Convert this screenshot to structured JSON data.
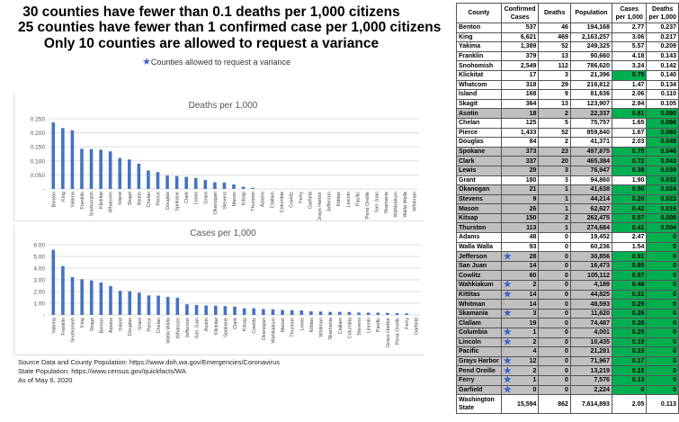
{
  "headlines": [
    "30 counties have fewer than 0.1 deaths per 1,000 citizens",
    "25 counties have fewer than 1 confirmed case per 1,000 citizens",
    "Only 10 counties are allowed to request a variance"
  ],
  "legend": {
    "icon": "star-icon",
    "label": "Counties allowed to request a variance"
  },
  "footer": [
    "Source Data and County Population: https://www.doh.wa.gov/Emergencies/Coronavirus",
    "State Population: https://www.census.gov/quickfacts/WA",
    "As of May 6, 2020"
  ],
  "colors": {
    "bar": "#4472c4",
    "gray": "#c0c0c0",
    "green": "#00b050",
    "star": "#3a62c4"
  },
  "table": {
    "headers": [
      "County",
      "Confirmed Cases",
      "Deaths",
      "Population",
      "Cases per 1,000",
      "Deaths per 1,000"
    ],
    "rows": [
      {
        "c": "Benton",
        "cases": "537",
        "deaths": "46",
        "pop": "194,168",
        "cp": "2.77",
        "dp": "0.237",
        "star": false,
        "gray": false,
        "gc": false,
        "gd": false
      },
      {
        "c": "King",
        "cases": "6,621",
        "deaths": "469",
        "pop": "2,163,257",
        "cp": "3.06",
        "dp": "0.217",
        "star": false,
        "gray": false,
        "gc": false,
        "gd": false
      },
      {
        "c": "Yakima",
        "cases": "1,389",
        "deaths": "52",
        "pop": "249,325",
        "cp": "5.57",
        "dp": "0.209",
        "star": false,
        "gray": false,
        "gc": false,
        "gd": false
      },
      {
        "c": "Franklin",
        "cases": "379",
        "deaths": "13",
        "pop": "90,660",
        "cp": "4.18",
        "dp": "0.143",
        "star": false,
        "gray": false,
        "gc": false,
        "gd": false
      },
      {
        "c": "Snohomish",
        "cases": "2,549",
        "deaths": "112",
        "pop": "786,620",
        "cp": "3.24",
        "dp": "0.142",
        "star": false,
        "gray": false,
        "gc": false,
        "gd": false
      },
      {
        "c": "Klickitat",
        "cases": "17",
        "deaths": "3",
        "pop": "21,396",
        "cp": "0.79",
        "dp": "0.140",
        "star": false,
        "gray": false,
        "gc": true,
        "gd": false
      },
      {
        "c": "Whatcom",
        "cases": "318",
        "deaths": "29",
        "pop": "216,812",
        "cp": "1.47",
        "dp": "0.134",
        "star": false,
        "gray": false,
        "gc": false,
        "gd": false
      },
      {
        "c": "Island",
        "cases": "168",
        "deaths": "9",
        "pop": "81,636",
        "cp": "2.06",
        "dp": "0.110",
        "star": false,
        "gray": false,
        "gc": false,
        "gd": false
      },
      {
        "c": "Skagit",
        "cases": "364",
        "deaths": "13",
        "pop": "123,907",
        "cp": "2.94",
        "dp": "0.105",
        "star": false,
        "gray": false,
        "gc": false,
        "gd": false
      },
      {
        "c": "Asotin",
        "cases": "18",
        "deaths": "2",
        "pop": "22,337",
        "cp": "0.81",
        "dp": "0.090",
        "star": false,
        "gray": true,
        "gc": true,
        "gd": true
      },
      {
        "c": "Chelan",
        "cases": "125",
        "deaths": "5",
        "pop": "75,757",
        "cp": "1.65",
        "dp": "0.066",
        "star": false,
        "gray": false,
        "gc": false,
        "gd": true
      },
      {
        "c": "Pierce",
        "cases": "1,433",
        "deaths": "52",
        "pop": "859,840",
        "cp": "1.67",
        "dp": "0.060",
        "star": false,
        "gray": false,
        "gc": false,
        "gd": true
      },
      {
        "c": "Douglas",
        "cases": "84",
        "deaths": "2",
        "pop": "41,371",
        "cp": "2.03",
        "dp": "0.048",
        "star": false,
        "gray": false,
        "gc": false,
        "gd": true
      },
      {
        "c": "Spokane",
        "cases": "373",
        "deaths": "23",
        "pop": "497,875",
        "cp": "0.75",
        "dp": "0.046",
        "star": false,
        "gray": true,
        "gc": true,
        "gd": true
      },
      {
        "c": "Clark",
        "cases": "337",
        "deaths": "20",
        "pop": "465,384",
        "cp": "0.72",
        "dp": "0.043",
        "star": false,
        "gray": true,
        "gc": true,
        "gd": true
      },
      {
        "c": "Lewis",
        "cases": "29",
        "deaths": "3",
        "pop": "76,947",
        "cp": "0.38",
        "dp": "0.039",
        "star": false,
        "gray": true,
        "gc": true,
        "gd": true
      },
      {
        "c": "Grant",
        "cases": "180",
        "deaths": "3",
        "pop": "94,860",
        "cp": "1.90",
        "dp": "0.032",
        "star": false,
        "gray": false,
        "gc": false,
        "gd": true
      },
      {
        "c": "Okanogan",
        "cases": "21",
        "deaths": "1",
        "pop": "41,638",
        "cp": "0.50",
        "dp": "0.024",
        "star": false,
        "gray": true,
        "gc": true,
        "gd": true
      },
      {
        "c": "Stevens",
        "cases": "9",
        "deaths": "1",
        "pop": "44,214",
        "cp": "0.20",
        "dp": "0.023",
        "star": false,
        "gray": true,
        "gc": true,
        "gd": true
      },
      {
        "c": "Mason",
        "cases": "26",
        "deaths": "1",
        "pop": "62,627",
        "cp": "0.42",
        "dp": "0.016",
        "star": false,
        "gray": true,
        "gc": true,
        "gd": true
      },
      {
        "c": "Kitsap",
        "cases": "150",
        "deaths": "2",
        "pop": "262,475",
        "cp": "0.57",
        "dp": "0.008",
        "star": false,
        "gray": true,
        "gc": true,
        "gd": true
      },
      {
        "c": "Thurston",
        "cases": "113",
        "deaths": "1",
        "pop": "274,684",
        "cp": "0.41",
        "dp": "0.004",
        "star": false,
        "gray": true,
        "gc": true,
        "gd": true
      },
      {
        "c": "Adams",
        "cases": "48",
        "deaths": "0",
        "pop": "19,452",
        "cp": "2.47",
        "dp": "0",
        "star": false,
        "gray": false,
        "gc": false,
        "gd": true
      },
      {
        "c": "Walla Walla",
        "cases": "93",
        "deaths": "0",
        "pop": "60,236",
        "cp": "1.54",
        "dp": "0",
        "star": false,
        "gray": false,
        "gc": false,
        "gd": true
      },
      {
        "c": "Jefferson",
        "cases": "28",
        "deaths": "0",
        "pop": "30,856",
        "cp": "0.91",
        "dp": "0",
        "star": true,
        "gray": true,
        "gc": true,
        "gd": true
      },
      {
        "c": "San Juan",
        "cases": "14",
        "deaths": "0",
        "pop": "16,473",
        "cp": "0.85",
        "dp": "0",
        "star": false,
        "gray": true,
        "gc": true,
        "gd": true
      },
      {
        "c": "Cowlitz",
        "cases": "60",
        "deaths": "0",
        "pop": "105,112",
        "cp": "0.57",
        "dp": "0",
        "star": false,
        "gray": true,
        "gc": true,
        "gd": true
      },
      {
        "c": "Wahkiakum",
        "cases": "2",
        "deaths": "0",
        "pop": "4,189",
        "cp": "0.48",
        "dp": "0",
        "star": true,
        "gray": true,
        "gc": true,
        "gd": true
      },
      {
        "c": "Kittitas",
        "cases": "14",
        "deaths": "0",
        "pop": "44,825",
        "cp": "0.31",
        "dp": "0",
        "star": true,
        "gray": true,
        "gc": true,
        "gd": true
      },
      {
        "c": "Whitman",
        "cases": "14",
        "deaths": "0",
        "pop": "48,593",
        "cp": "0.29",
        "dp": "0",
        "star": false,
        "gray": true,
        "gc": true,
        "gd": true
      },
      {
        "c": "Skamania",
        "cases": "3",
        "deaths": "0",
        "pop": "11,620",
        "cp": "0.26",
        "dp": "0",
        "star": true,
        "gray": true,
        "gc": true,
        "gd": true
      },
      {
        "c": "Clallam",
        "cases": "19",
        "deaths": "0",
        "pop": "74,487",
        "cp": "0.26",
        "dp": "0",
        "star": false,
        "gray": true,
        "gc": true,
        "gd": true
      },
      {
        "c": "Columbia",
        "cases": "1",
        "deaths": "0",
        "pop": "4,001",
        "cp": "0.25",
        "dp": "0",
        "star": true,
        "gray": true,
        "gc": true,
        "gd": true
      },
      {
        "c": "Lincoln",
        "cases": "2",
        "deaths": "0",
        "pop": "10,435",
        "cp": "0.19",
        "dp": "0",
        "star": true,
        "gray": true,
        "gc": true,
        "gd": true
      },
      {
        "c": "Pacific",
        "cases": "4",
        "deaths": "0",
        "pop": "21,281",
        "cp": "0.19",
        "dp": "0",
        "star": false,
        "gray": true,
        "gc": true,
        "gd": true
      },
      {
        "c": "Grays Harbor",
        "cases": "12",
        "deaths": "0",
        "pop": "71,967",
        "cp": "0.17",
        "dp": "0",
        "star": true,
        "gray": true,
        "gc": true,
        "gd": true
      },
      {
        "c": "Pend Oreille",
        "cases": "2",
        "deaths": "0",
        "pop": "13,219",
        "cp": "0.15",
        "dp": "0",
        "star": true,
        "gray": true,
        "gc": true,
        "gd": true
      },
      {
        "c": "Ferry",
        "cases": "1",
        "deaths": "0",
        "pop": "7,576",
        "cp": "0.13",
        "dp": "0",
        "star": true,
        "gray": true,
        "gc": true,
        "gd": true
      },
      {
        "c": "Garfield",
        "cases": "0",
        "deaths": "0",
        "pop": "2,224",
        "cp": "0",
        "dp": "0",
        "star": true,
        "gray": true,
        "gc": true,
        "gd": true
      }
    ],
    "total": {
      "c": "Washington State",
      "cases": "15,594",
      "deaths": "862",
      "pop": "7,614,893",
      "cp": "2.05",
      "dp": "0.113"
    }
  },
  "chart_data": [
    {
      "type": "bar",
      "title": "Deaths per 1,000",
      "xlabel": "",
      "ylabel": "",
      "ylim": [
        0,
        0.25
      ],
      "yticks": [
        "-",
        "0.050",
        "0.100",
        "0.150",
        "0.200",
        "0.250"
      ],
      "grid": true,
      "categories": [
        "Benton",
        "King",
        "Yakima",
        "Franklin",
        "Snohomish",
        "Klickitat",
        "Whatcom",
        "Island",
        "Skagit",
        "Asotin",
        "Chelan",
        "Pierce",
        "Douglas",
        "Spokane",
        "Clark",
        "Lewis",
        "Grant",
        "Okanogan",
        "Stevens",
        "Mason",
        "Kitsap",
        "Thurston",
        "Adams",
        "Clallam",
        "Columbia",
        "Cowlitz",
        "Ferry",
        "Garfield",
        "Grays Harbor",
        "Jefferson",
        "Kittitas",
        "Lincoln",
        "Pacific",
        "Pend Oreille",
        "San Juan",
        "Skamania",
        "Wahkiakum",
        "Walla Walla",
        "Whitman"
      ],
      "values": [
        0.237,
        0.217,
        0.209,
        0.143,
        0.142,
        0.14,
        0.134,
        0.11,
        0.105,
        0.09,
        0.066,
        0.06,
        0.048,
        0.046,
        0.043,
        0.039,
        0.032,
        0.024,
        0.023,
        0.016,
        0.008,
        0.004,
        0,
        0,
        0,
        0,
        0,
        0,
        0,
        0,
        0,
        0,
        0,
        0,
        0,
        0,
        0,
        0,
        0
      ]
    },
    {
      "type": "bar",
      "title": "Cases per 1,000",
      "xlabel": "",
      "ylabel": "",
      "ylim": [
        0,
        6
      ],
      "yticks": [
        "-",
        "1.00",
        "2.00",
        "3.00",
        "4.00",
        "5.00",
        "6.00"
      ],
      "grid": true,
      "categories": [
        "Yakima",
        "Franklin",
        "Snohomish",
        "King",
        "Skagit",
        "Benton",
        "Adams",
        "Island",
        "Douglas",
        "Grant",
        "Pierce",
        "Chelan",
        "Walla Walla",
        "Whatcom",
        "Jefferson",
        "San Juan",
        "Asotin",
        "Klickitat",
        "Spokane",
        "Clark",
        "Kitsap",
        "Cowlitz",
        "Okanogan",
        "Wahkiakum",
        "Mason",
        "Thurston",
        "Lewis",
        "Kittitas",
        "Whitman",
        "Skamania",
        "Clallam",
        "Columbia",
        "Stevens",
        "Lincoln",
        "Pacific",
        "Grays Harbor",
        "Pend Oreille",
        "Ferry",
        "Garfield"
      ],
      "values": [
        5.57,
        4.18,
        3.24,
        3.06,
        2.94,
        2.77,
        2.47,
        2.06,
        2.03,
        1.9,
        1.67,
        1.65,
        1.54,
        1.47,
        0.91,
        0.85,
        0.81,
        0.79,
        0.75,
        0.72,
        0.57,
        0.57,
        0.5,
        0.48,
        0.42,
        0.41,
        0.38,
        0.31,
        0.29,
        0.26,
        0.26,
        0.25,
        0.2,
        0.19,
        0.19,
        0.17,
        0.15,
        0.13,
        0
      ]
    }
  ]
}
